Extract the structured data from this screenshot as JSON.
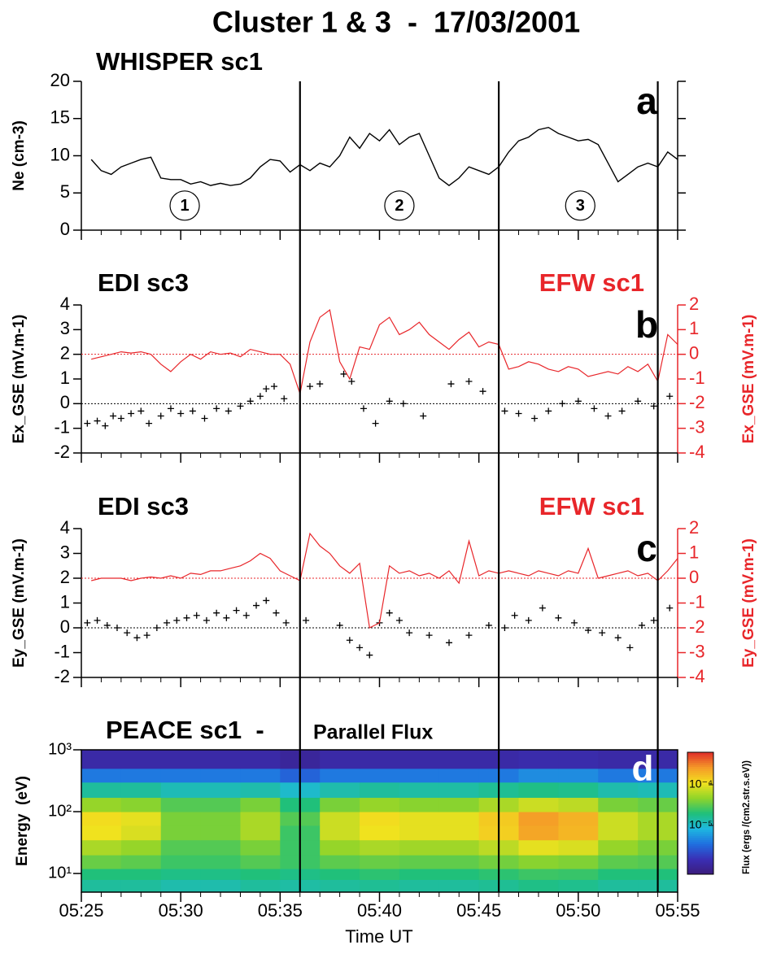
{
  "title": "Cluster 1 & 3  -  17/03/2001",
  "xlabel": "Time UT",
  "vlines": [
    36,
    46,
    54
  ],
  "chart_data": [
    {
      "type": "line",
      "title": "WHISPER sc1",
      "panel_label": "a",
      "ylabel": "Ne (cm-3)",
      "color": "#000000",
      "xlim": [
        25,
        55
      ],
      "xticks": [
        25,
        30,
        35,
        40,
        45,
        50,
        55
      ],
      "xminor": [
        26,
        27,
        28,
        29,
        31,
        32,
        33,
        34,
        36,
        37,
        38,
        39,
        41,
        42,
        43,
        44,
        46,
        47,
        48,
        49,
        51,
        52,
        53,
        54
      ],
      "ylim": [
        0,
        20
      ],
      "yticks": [
        0,
        5,
        10,
        15,
        20
      ],
      "x": [
        25.5,
        26,
        26.5,
        27,
        27.5,
        28,
        28.5,
        29,
        29.5,
        30,
        30.5,
        31,
        31.5,
        32,
        32.5,
        33,
        33.5,
        34,
        34.5,
        35,
        35.5,
        36,
        36.5,
        37,
        37.5,
        38,
        38.5,
        39,
        39.5,
        40,
        40.5,
        41,
        41.5,
        42,
        42.5,
        43,
        43.5,
        44,
        44.5,
        45,
        45.5,
        46,
        46.5,
        47,
        47.5,
        48,
        48.5,
        49,
        49.5,
        50,
        50.5,
        51,
        51.5,
        52,
        52.5,
        53,
        53.5,
        54,
        54.5,
        55
      ],
      "values": [
        9.5,
        8,
        7.5,
        8.5,
        9,
        9.5,
        9.8,
        7,
        6.8,
        6.8,
        6.2,
        6.5,
        6,
        6.3,
        6,
        6.2,
        7,
        8.5,
        9.5,
        9.3,
        7.8,
        8.8,
        8,
        9,
        8.5,
        10,
        12.5,
        11,
        13,
        12,
        13.5,
        11.5,
        12.5,
        13,
        10,
        7,
        6,
        7,
        8.5,
        8,
        7.5,
        8.5,
        10.5,
        12,
        12.5,
        13.5,
        13.8,
        13,
        12.5,
        12,
        12.2,
        11.5,
        9,
        6.5,
        7.5,
        8.5,
        9,
        8.5,
        10.5,
        9.5
      ],
      "annotations": [
        {
          "text": "1",
          "x": 30.2,
          "y": 3.3
        },
        {
          "text": "2",
          "x": 41,
          "y": 3.3
        },
        {
          "text": "3",
          "x": 50.1,
          "y": 3.3
        }
      ]
    },
    {
      "type": "line",
      "panel_label": "b",
      "ylabel": "Ex_GSE (mV.m-1)",
      "y2label": "Ex_GSE (mV.m-1)",
      "y2color": "#e8262a",
      "xlim": [
        25,
        55
      ],
      "xticks": [
        25,
        30,
        35,
        40,
        45,
        50,
        55
      ],
      "xminor": [
        26,
        27,
        28,
        29,
        31,
        32,
        33,
        34,
        36,
        37,
        38,
        39,
        41,
        42,
        43,
        44,
        46,
        47,
        48,
        49,
        51,
        52,
        53,
        54
      ],
      "ylim": [
        -2,
        4
      ],
      "yticks": [
        -2,
        -1,
        0,
        1,
        2,
        3,
        4
      ],
      "y2lim": [
        -4,
        2
      ],
      "y2ticks": [
        -4,
        -3,
        -2,
        -1,
        0,
        1,
        2
      ],
      "ref_lines": [
        {
          "axis": "y",
          "value": 0,
          "color": "#000000"
        },
        {
          "axis": "y2",
          "value": 0,
          "color": "#e8262a"
        }
      ],
      "x": [
        25.5,
        26,
        26.5,
        27,
        27.5,
        28,
        28.5,
        29,
        29.5,
        30,
        30.5,
        31,
        31.5,
        32,
        32.5,
        33,
        33.5,
        34,
        34.5,
        35,
        35.5,
        36,
        36.5,
        37,
        37.5,
        38,
        38.5,
        39,
        39.5,
        40,
        40.5,
        41,
        41.5,
        42,
        42.5,
        43,
        43.5,
        44,
        44.5,
        45,
        45.5,
        46,
        46.5,
        47,
        47.5,
        48,
        48.5,
        49,
        49.5,
        50,
        50.5,
        51,
        51.5,
        52,
        52.5,
        53,
        53.5,
        54,
        54.5,
        55
      ],
      "series": [
        {
          "name": "EDI sc3",
          "color": "#000000",
          "marker": "+",
          "x": [
            25.3,
            25.8,
            26.2,
            26.6,
            27.0,
            27.5,
            28.0,
            28.4,
            29.0,
            29.5,
            30.0,
            30.6,
            31.2,
            31.8,
            32.4,
            33.0,
            33.5,
            34.0,
            34.3,
            34.7,
            35.2,
            36.5,
            37.0,
            38.2,
            38.6,
            39.2,
            39.8,
            40.5,
            41.2,
            42.2,
            43.6,
            44.5,
            45.2,
            46.3,
            47.0,
            47.8,
            48.5,
            49.2,
            50.0,
            50.8,
            51.5,
            52.2,
            53.0,
            53.8,
            54.6
          ],
          "values": [
            -0.8,
            -0.7,
            -0.9,
            -0.5,
            -0.6,
            -0.4,
            -0.3,
            -0.8,
            -0.5,
            -0.2,
            -0.4,
            -0.3,
            -0.6,
            -0.2,
            -0.3,
            -0.1,
            0.1,
            0.3,
            0.6,
            0.7,
            0.2,
            0.7,
            0.8,
            1.2,
            0.9,
            -0.2,
            -0.8,
            0.1,
            0.0,
            -0.5,
            0.8,
            0.9,
            0.5,
            -0.3,
            -0.4,
            -0.6,
            -0.3,
            0.0,
            0.1,
            -0.2,
            -0.5,
            -0.3,
            0.1,
            -0.1,
            0.3
          ]
        },
        {
          "name": "EFW sc1",
          "color": "#e8262a",
          "axis": "y2",
          "values": [
            -0.2,
            -0.1,
            0,
            0.1,
            0.05,
            0.1,
            0,
            -0.4,
            -0.7,
            -0.3,
            0,
            -0.2,
            0.1,
            0,
            0.05,
            -0.1,
            0.2,
            0.1,
            0,
            0,
            -0.4,
            -1.6,
            0.5,
            1.5,
            1.8,
            -0.3,
            -1.0,
            0.3,
            0.2,
            1.2,
            1.5,
            0.8,
            1.0,
            1.3,
            0.8,
            0.5,
            0.2,
            0.6,
            0.9,
            0.3,
            0.5,
            0.4,
            -0.6,
            -0.5,
            -0.3,
            -0.4,
            -0.6,
            -0.7,
            -0.5,
            -0.6,
            -0.9,
            -0.8,
            -0.7,
            -0.8,
            -0.5,
            -0.7,
            -0.4,
            -1.1,
            0.8,
            0.4
          ]
        }
      ]
    },
    {
      "type": "line",
      "panel_label": "c",
      "ylabel": "Ey_GSE (mV.m-1)",
      "y2label": "Ey_GSE (mV.m-1)",
      "y2color": "#e8262a",
      "xlim": [
        25,
        55
      ],
      "xticks": [
        25,
        30,
        35,
        40,
        45,
        50,
        55
      ],
      "xminor": [
        26,
        27,
        28,
        29,
        31,
        32,
        33,
        34,
        36,
        37,
        38,
        39,
        41,
        42,
        43,
        44,
        46,
        47,
        48,
        49,
        51,
        52,
        53,
        54
      ],
      "ylim": [
        -2,
        4
      ],
      "yticks": [
        -2,
        -1,
        0,
        1,
        2,
        3,
        4
      ],
      "y2lim": [
        -4,
        2
      ],
      "y2ticks": [
        -4,
        -3,
        -2,
        -1,
        0,
        1,
        2
      ],
      "ref_lines": [
        {
          "axis": "y",
          "value": 0,
          "color": "#000000"
        },
        {
          "axis": "y2",
          "value": 0,
          "color": "#e8262a"
        }
      ],
      "x": [
        25.5,
        26,
        26.5,
        27,
        27.5,
        28,
        28.5,
        29,
        29.5,
        30,
        30.5,
        31,
        31.5,
        32,
        32.5,
        33,
        33.5,
        34,
        34.5,
        35,
        35.5,
        36,
        36.5,
        37,
        37.5,
        38,
        38.5,
        39,
        39.5,
        40,
        40.5,
        41,
        41.5,
        42,
        42.5,
        43,
        43.5,
        44,
        44.5,
        45,
        45.5,
        46,
        46.5,
        47,
        47.5,
        48,
        48.5,
        49,
        49.5,
        50,
        50.5,
        51,
        51.5,
        52,
        52.5,
        53,
        53.5,
        54,
        54.5,
        55
      ],
      "series": [
        {
          "name": "EDI sc3",
          "color": "#000000",
          "marker": "+",
          "x": [
            25.3,
            25.8,
            26.3,
            26.8,
            27.3,
            27.8,
            28.3,
            28.8,
            29.3,
            29.8,
            30.3,
            30.8,
            31.3,
            31.8,
            32.3,
            32.8,
            33.3,
            33.8,
            34.3,
            34.8,
            35.3,
            36.3,
            38.0,
            38.5,
            39.0,
            39.5,
            40.0,
            40.5,
            41.0,
            41.5,
            42.5,
            43.5,
            44.5,
            45.5,
            46.3,
            46.8,
            47.5,
            48.2,
            49.0,
            49.8,
            50.5,
            51.2,
            52.0,
            52.6,
            53.2,
            53.8,
            54.6
          ],
          "values": [
            0.2,
            0.3,
            0.1,
            0.0,
            -0.2,
            -0.4,
            -0.3,
            0.0,
            0.2,
            0.3,
            0.4,
            0.5,
            0.3,
            0.6,
            0.4,
            0.7,
            0.5,
            0.9,
            1.1,
            0.6,
            0.2,
            0.3,
            0.1,
            -0.5,
            -0.8,
            -1.1,
            0.2,
            0.6,
            0.3,
            -0.2,
            -0.3,
            -0.6,
            -0.3,
            0.1,
            0.0,
            0.5,
            0.3,
            0.8,
            0.4,
            0.2,
            -0.1,
            -0.2,
            -0.4,
            -0.8,
            0.1,
            0.3,
            0.8
          ]
        },
        {
          "name": "EFW sc1",
          "color": "#e8262a",
          "axis": "y2",
          "values": [
            -0.1,
            0,
            0,
            0,
            -0.1,
            0,
            0.05,
            0,
            0.1,
            0,
            0.2,
            0.15,
            0.3,
            0.3,
            0.4,
            0.5,
            0.7,
            1.0,
            0.8,
            0.3,
            0.1,
            -0.1,
            1.8,
            1.3,
            1.0,
            0.5,
            0.2,
            0.6,
            -2.0,
            -1.8,
            0.5,
            0.2,
            0.3,
            0.1,
            0.2,
            0.0,
            0.3,
            -0.2,
            1.5,
            0.1,
            0.3,
            0.2,
            0.3,
            0.2,
            0.1,
            0.3,
            0.2,
            0.1,
            0.3,
            0.2,
            1.2,
            0.0,
            0.1,
            0.2,
            0.3,
            0.1,
            0.2,
            -0.1,
            0.3,
            0.8
          ]
        }
      ]
    },
    {
      "type": "heatmap",
      "title": "PEACE sc1  -",
      "subtitle": "Parallel Flux",
      "panel_label": "d",
      "ylabel": "Energy  (eV)",
      "xlim": [
        25,
        55
      ],
      "xticks": [
        {
          "value": 25,
          "label": "05:25"
        },
        {
          "value": 30,
          "label": "05:30"
        },
        {
          "value": 35,
          "label": "05:35"
        },
        {
          "value": 40,
          "label": "05:40"
        },
        {
          "value": 45,
          "label": "05:45"
        },
        {
          "value": 50,
          "label": "05:50"
        },
        {
          "value": 55,
          "label": "05:55"
        }
      ],
      "xminor": [
        26,
        27,
        28,
        29,
        31,
        32,
        33,
        34,
        36,
        37,
        38,
        39,
        41,
        42,
        43,
        44,
        46,
        47,
        48,
        49,
        51,
        52,
        53,
        54
      ],
      "ylim": [
        5,
        1000
      ],
      "ylog": true,
      "yticks": [
        {
          "value": 10,
          "label": "10¹"
        },
        {
          "value": 100,
          "label": "10²"
        },
        {
          "value": 1000,
          "label": "10³"
        }
      ],
      "x_bins": [
        25,
        27,
        29,
        31,
        33,
        35,
        37,
        39,
        41,
        43,
        45,
        47,
        49,
        51,
        53,
        55
      ],
      "y_bins": [
        5,
        8,
        12,
        20,
        35,
        60,
        100,
        170,
        300,
        500,
        1000
      ],
      "z": [
        [
          1.5e-05,
          1.5e-05,
          1.3e-05,
          1.3e-05,
          1.5e-05,
          1.4e-05,
          1.5e-05,
          1.6e-05,
          1.5e-05,
          1.5e-05,
          1.6e-05,
          1.8e-05,
          1.7e-05,
          1.5e-05,
          1.5e-05
        ],
        [
          2e-05,
          2e-05,
          1.8e-05,
          1.8e-05,
          2e-05,
          1.8e-05,
          2e-05,
          2.2e-05,
          2e-05,
          2e-05,
          2.2e-05,
          2.5e-05,
          2.4e-05,
          2e-05,
          2e-05
        ],
        [
          3.5e-05,
          3.2e-05,
          2.5e-05,
          2.5e-05,
          3e-05,
          2.5e-05,
          3.2e-05,
          3.5e-05,
          3.3e-05,
          3.3e-05,
          3.8e-05,
          4.5e-05,
          4.2e-05,
          3.2e-05,
          3e-05
        ],
        [
          6e-05,
          5e-05,
          3e-05,
          3e-05,
          4e-05,
          2.5e-05,
          5e-05,
          6e-05,
          5.5e-05,
          5.5e-05,
          7e-05,
          0.0001,
          9e-05,
          5e-05,
          4e-05
        ],
        [
          0.00011,
          9e-05,
          4e-05,
          4e-05,
          6e-05,
          2.5e-05,
          8e-05,
          0.00011,
          0.0001,
          0.0001,
          0.00014,
          0.00023,
          0.00019,
          8e-05,
          6e-05
        ],
        [
          0.00012,
          0.0001,
          4e-05,
          4e-05,
          6e-05,
          3e-05,
          8e-05,
          0.00012,
          0.0001,
          0.0001,
          0.00015,
          0.00025,
          0.0002,
          8e-05,
          6e-05
        ],
        [
          5e-05,
          4.5e-05,
          3e-05,
          3e-05,
          4e-05,
          2e-05,
          4e-05,
          5e-05,
          4.5e-05,
          4.5e-05,
          6e-05,
          8e-05,
          7e-05,
          4e-05,
          3.5e-05
        ],
        [
          1.5e-05,
          1.5e-05,
          1.2e-05,
          1.2e-05,
          1.3e-05,
          1e-05,
          1.3e-05,
          1.5e-05,
          1.4e-05,
          1.4e-05,
          1.6e-05,
          1.8e-05,
          1.7e-05,
          1.3e-05,
          1.2e-05
        ],
        [
          4e-06,
          4e-06,
          4e-06,
          4e-06,
          4e-06,
          3e-06,
          4e-06,
          4e-06,
          4e-06,
          4e-06,
          4e-06,
          5e-06,
          5e-06,
          4e-06,
          4e-06
        ],
        [
          1.2e-06,
          1.2e-06,
          1.2e-06,
          1.2e-06,
          1.2e-06,
          1e-06,
          1.2e-06,
          1.2e-06,
          1.2e-06,
          1.2e-06,
          1.2e-06,
          1.3e-06,
          1.3e-06,
          1.2e-06,
          1.2e-06
        ]
      ],
      "colorbar": {
        "label": "Flux (ergs /(cm2.str.s.eV))",
        "clim": [
          6.3e-07,
          0.00063
        ],
        "log": true,
        "ticks": [
          {
            "value": 1e-05,
            "label": "10⁻⁵"
          },
          {
            "value": 0.0001,
            "label": "10⁻⁴"
          }
        ],
        "colormap": [
          "#3b1c7a",
          "#3a2fb5",
          "#1f6fe0",
          "#1eb8e0",
          "#1fc07a",
          "#8fd42a",
          "#f2e21e",
          "#f59a28",
          "#e0302a"
        ]
      }
    }
  ]
}
